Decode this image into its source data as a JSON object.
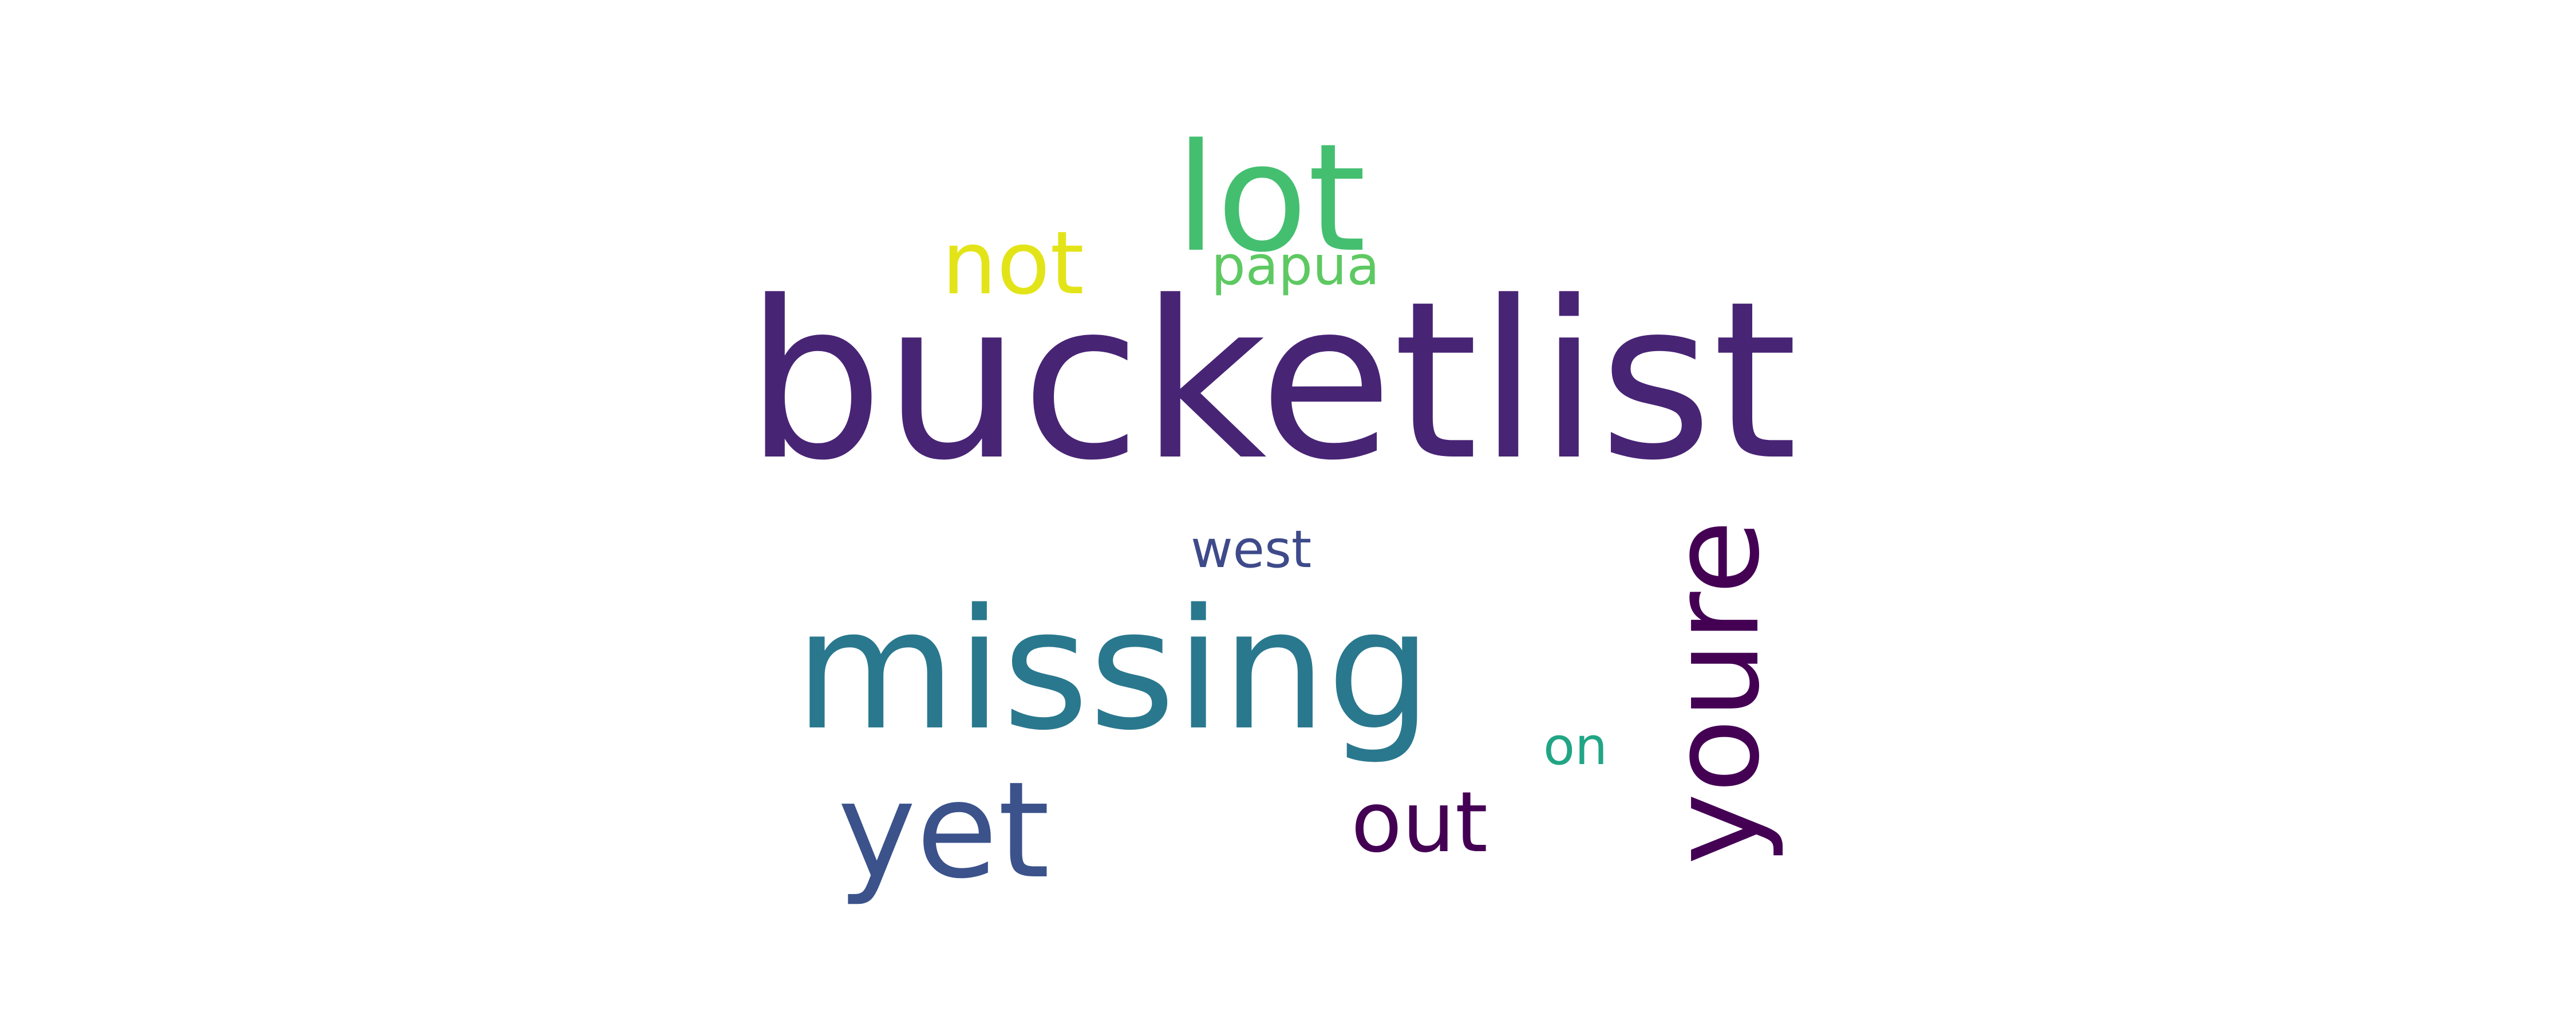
{
  "words": [
    {
      "text": "bucketlist",
      "color": "#482475",
      "weight": 1.0
    },
    {
      "text": "missing",
      "color": "#2a788e",
      "weight": 0.76
    },
    {
      "text": "lot",
      "color": "#44bf70",
      "weight": 0.68
    },
    {
      "text": "yet",
      "color": "#3b528b",
      "weight": 0.6
    },
    {
      "text": "youre",
      "color": "#440154",
      "weight": 0.56
    },
    {
      "text": "not",
      "color": "#e3e418",
      "weight": 0.4
    },
    {
      "text": "out",
      "color": "#440154",
      "weight": 0.38
    },
    {
      "text": "papua",
      "color": "#5ec962",
      "weight": 0.26
    },
    {
      "text": "west",
      "color": "#3e4a89",
      "weight": 0.26
    },
    {
      "text": "on",
      "color": "#21a585",
      "weight": 0.24
    }
  ]
}
